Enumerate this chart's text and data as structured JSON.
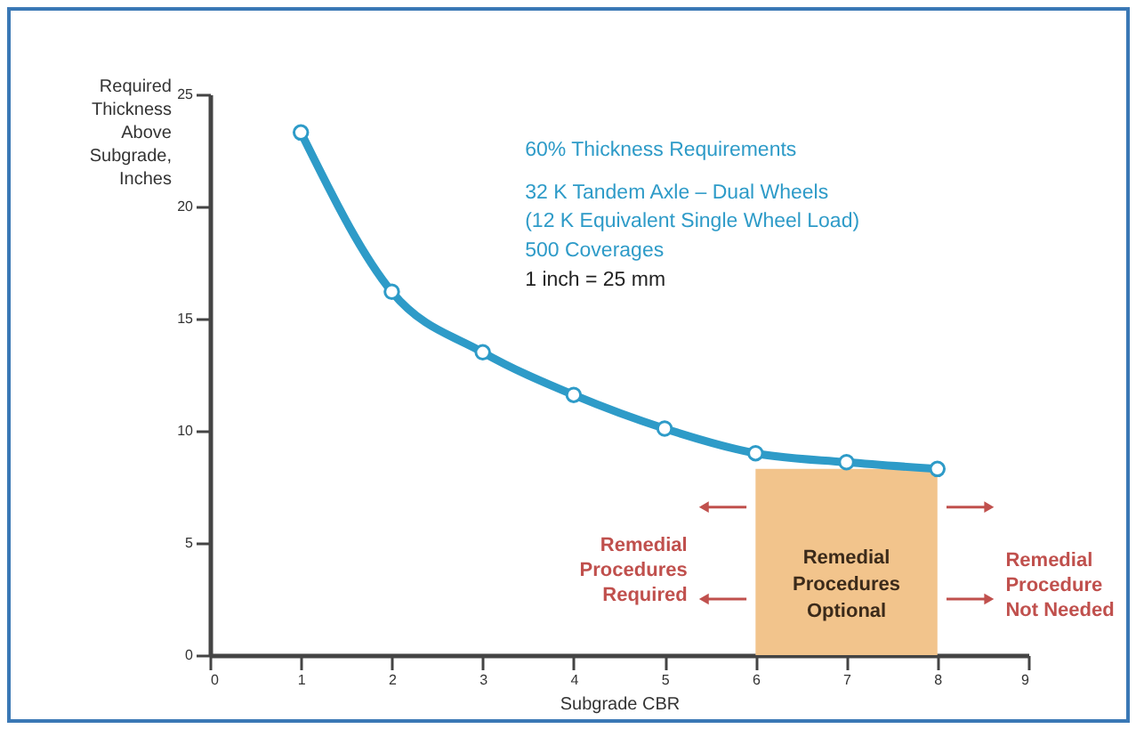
{
  "chart_data": {
    "type": "line",
    "title": "60% Thickness Requirements",
    "xlabel": "Subgrade CBR",
    "ylabel": "Required Thickness Above Subgrade, Inches",
    "x": [
      1,
      2,
      3,
      4,
      5,
      6,
      7,
      8
    ],
    "series": [
      {
        "color": "#2e9bc8",
        "values": [
          23.3,
          16.2,
          13.5,
          11.6,
          10.1,
          9.0,
          8.6,
          8.3
        ]
      }
    ],
    "xlim": [
      0,
      9
    ],
    "xticks": [
      0,
      1,
      2,
      3,
      4,
      5,
      6,
      7,
      8,
      9
    ],
    "ylim": [
      0,
      25
    ],
    "yticks": [
      0,
      5,
      10,
      15,
      20,
      25
    ],
    "marker": "circle",
    "line_style": "solid",
    "bands": [
      {
        "axis": "x",
        "from": 6,
        "to": 8,
        "label": "Remedial Procedures Optional",
        "color": "#f2c48c"
      }
    ],
    "annotations": [
      "32 K Tandem Axle – Dual Wheels",
      "(12 K Equivalent Single Wheel Load)",
      "500 Coverages",
      "1 inch = 25 mm",
      "Remedial Procedures Required",
      "Remedial Procedure Not Needed"
    ]
  }
}
